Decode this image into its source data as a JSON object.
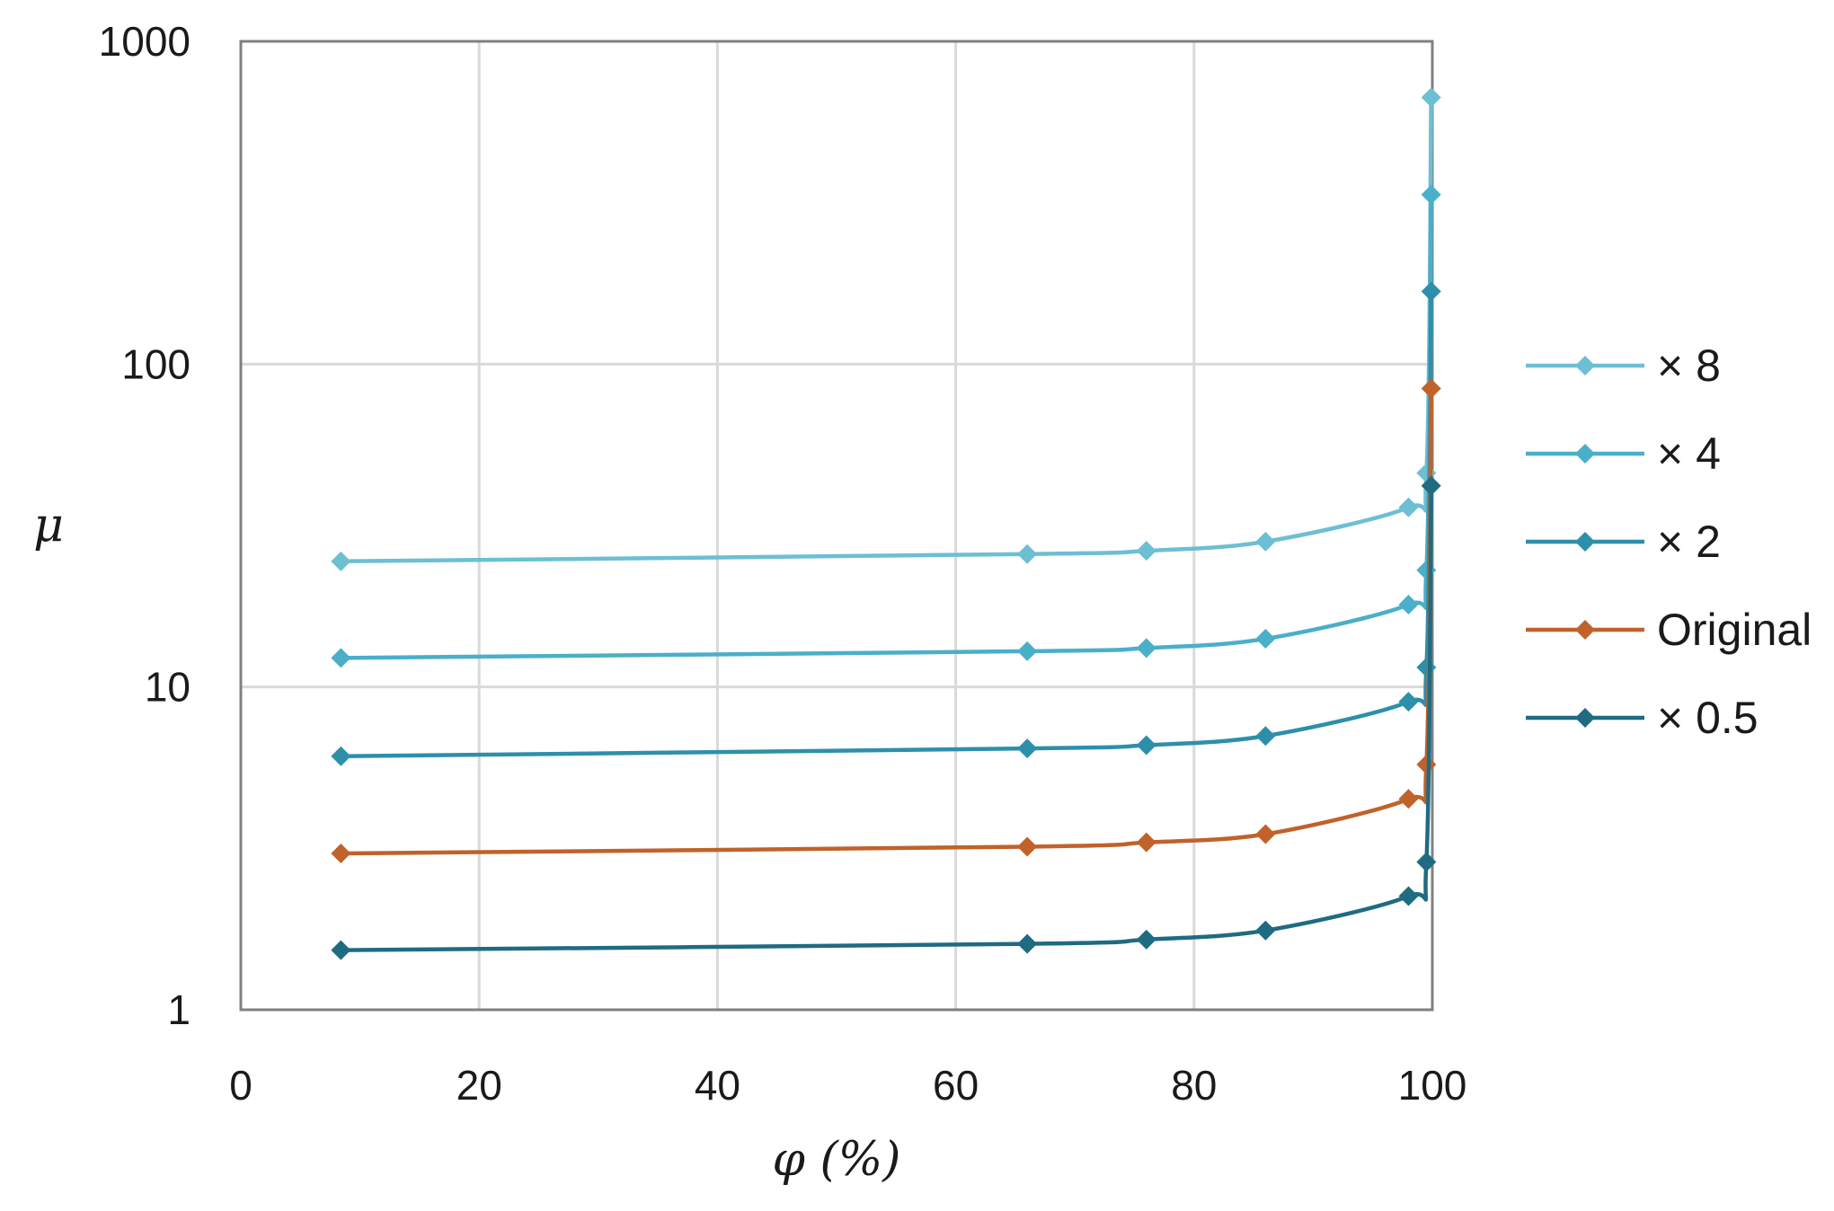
{
  "chart_data": {
    "type": "line",
    "title": "",
    "xlabel": "φ (%)",
    "ylabel": "μ",
    "xlim": [
      0,
      100
    ],
    "ylim": [
      1,
      1000
    ],
    "yscale": "log",
    "grid": true,
    "legend_position": "right",
    "x_ticks": [
      "0",
      "20",
      "40",
      "60",
      "80",
      "100"
    ],
    "y_ticks": [
      "1",
      "10",
      "100",
      "1000"
    ],
    "x": [
      8.4,
      66,
      76,
      86,
      98,
      99.5,
      99.9
    ],
    "series": [
      {
        "name": "× 8",
        "color": "#6dbfd3",
        "values": [
          24.5,
          25.8,
          26.4,
          28.2,
          36,
          46,
          670
        ]
      },
      {
        "name": "× 4",
        "color": "#4aafc9",
        "values": [
          12.3,
          12.9,
          13.2,
          14.1,
          18,
          23,
          335
        ]
      },
      {
        "name": "× 2",
        "color": "#2e8fab",
        "values": [
          6.1,
          6.45,
          6.6,
          7.05,
          9,
          11.5,
          168
        ]
      },
      {
        "name": "Original",
        "color": "#c0622a",
        "values": [
          3.05,
          3.2,
          3.3,
          3.5,
          4.5,
          5.75,
          84
        ]
      },
      {
        "name": "× 0.5",
        "color": "#1f6b82",
        "values": [
          1.53,
          1.6,
          1.65,
          1.76,
          2.25,
          2.87,
          42
        ]
      }
    ]
  }
}
